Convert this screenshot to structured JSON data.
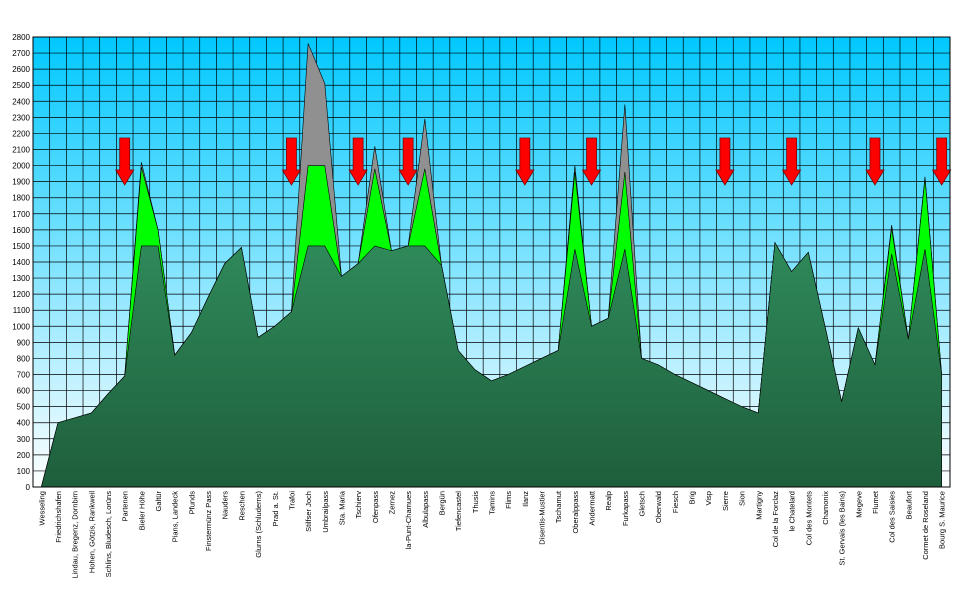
{
  "chart_data": {
    "type": "area",
    "title": "",
    "xlabel": "",
    "ylabel": "",
    "ylim": [
      0,
      2800
    ],
    "ytick_step": 100,
    "grid": true,
    "colors": {
      "background_top": "#00c8ff",
      "background_bottom": "#ffffff",
      "grid": "#000000",
      "terrain": "#2f8a5a",
      "terrain_dark": "#1e5e3c",
      "middle_band": "#00ff00",
      "top_band": "#909090",
      "arrow": "#ff0000",
      "arrow_outline": "#800000"
    },
    "categories": [
      "Wesseling",
      "Friedrichshafen",
      "Lindau, Bregenz, Dornbirn",
      "Hohen, Götzis, Rankweil",
      "Schlins, Bludesch, Lorüns",
      "Partenen",
      "Bieler Höhe",
      "Galtür",
      "Pians, Landeck",
      "Pfunds",
      "Finstermünz Pass",
      "Nauders",
      "Reschen",
      "Glurns (Schluderns)",
      "Prad a. St.",
      "Trafoi",
      "Stilfser Joch",
      "Umbrailpass",
      "Sta. Maria",
      "Tschierv",
      "Ofenpass",
      "Zernez",
      "la-Punt-Chamues",
      "Albulapass",
      "Bergün",
      "Tiefencastel",
      "Thusis",
      "Tamins",
      "Flims",
      "Ilanz",
      "Disentis-Mustier",
      "Tschamut",
      "Oberalppass",
      "Andermatt",
      "Realp",
      "Furkapass",
      "Gletsch",
      "Oberwald",
      "Fiesch",
      "Brig",
      "Visp",
      "Sierre",
      "Sion",
      "Martigny",
      "Col de la Forclaz",
      "le Chatelard",
      "Col des Montets",
      "Chamonix",
      "St. Gervais (les Bains)",
      "Megeve",
      "Flumet",
      "Col des Saisies",
      "Beaufort",
      "Cormet de Roseland",
      "Bourg S. Maurice"
    ],
    "series": [
      {
        "values": [
          0,
          400,
          430,
          460,
          580,
          690,
          1500,
          1500,
          820,
          960,
          1180,
          1390,
          1490,
          930,
          1000,
          1090,
          1500,
          1500,
          1310,
          1390,
          1500,
          1470,
          1500,
          1500,
          1380,
          850,
          730,
          660,
          700,
          750,
          800,
          850,
          1480,
          1000,
          1050,
          1480,
          800,
          760,
          700,
          650,
          600,
          550,
          500,
          460,
          1520,
          1340,
          1460,
          1000,
          530,
          990,
          760,
          1450,
          920,
          1480,
          700
        ]
      },
      {
        "values": [
          0,
          400,
          430,
          460,
          580,
          690,
          1990,
          1600,
          820,
          960,
          1180,
          1390,
          1490,
          930,
          1000,
          1090,
          2000,
          2000,
          1310,
          1390,
          1980,
          1470,
          1500,
          1980,
          1380,
          850,
          730,
          660,
          700,
          750,
          800,
          850,
          1960,
          1000,
          1050,
          1960,
          800,
          760,
          700,
          650,
          600,
          550,
          500,
          460,
          1520,
          1340,
          1460,
          1000,
          530,
          990,
          760,
          1610,
          920,
          1920,
          700
        ]
      },
      {
        "values": [
          0,
          400,
          430,
          460,
          580,
          690,
          2020,
          1600,
          820,
          960,
          1180,
          1390,
          1490,
          930,
          1000,
          1090,
          2760,
          2510,
          1310,
          1390,
          2120,
          1470,
          1500,
          2290,
          1380,
          850,
          730,
          660,
          700,
          750,
          800,
          850,
          2000,
          1000,
          1050,
          2380,
          800,
          760,
          700,
          650,
          600,
          550,
          500,
          460,
          1520,
          1340,
          1460,
          1000,
          530,
          990,
          760,
          1630,
          920,
          1930,
          700
        ]
      }
    ],
    "arrow_indices": [
      5,
      15,
      19,
      22,
      29,
      33,
      41,
      45,
      50,
      54
    ]
  }
}
